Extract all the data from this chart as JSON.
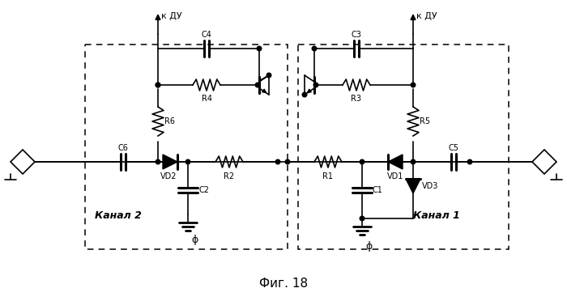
{
  "title": "Фиг. 18",
  "channel2_label": "Канал 2",
  "channel1_label": "Канал 1",
  "kdu_label": "к ДУ",
  "bg": "#ffffff",
  "fig_w": 7.0,
  "fig_h": 3.72,
  "dpi": 100
}
